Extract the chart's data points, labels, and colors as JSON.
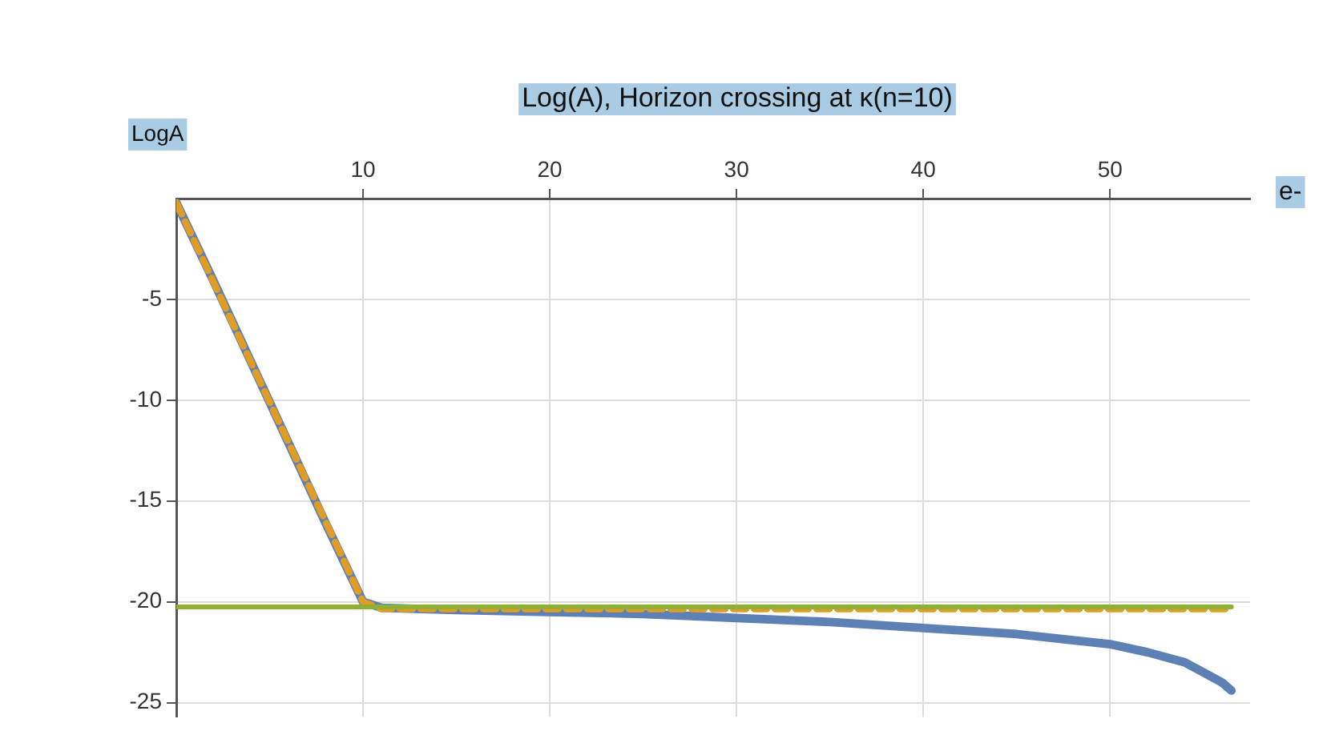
{
  "chart_data": {
    "type": "line",
    "title": "Log(A), Horizon crossing at κ(n=10)",
    "xlabel": "e-",
    "ylabel": "LogA",
    "xlim": [
      0,
      57.5
    ],
    "ylim": [
      -25.7,
      0
    ],
    "xticks": [
      10,
      20,
      30,
      40,
      50
    ],
    "yticks": [
      -25,
      -20,
      -15,
      -10,
      -5
    ],
    "grid": true,
    "series": [
      {
        "color": "#5e81b5",
        "x": [
          0,
          2,
          4,
          6,
          8,
          10,
          11,
          15,
          20,
          25,
          30,
          35,
          40,
          45,
          50,
          52,
          54,
          55,
          56,
          56.5
        ],
        "values": [
          -0.2,
          -4.1,
          -8.1,
          -12.1,
          -16.1,
          -20.0,
          -20.3,
          -20.4,
          -20.5,
          -20.6,
          -20.8,
          -21.0,
          -21.3,
          -21.6,
          -22.1,
          -22.5,
          -23.0,
          -23.5,
          -24.0,
          -24.4
        ]
      },
      {
        "color": "#e19c24",
        "line_style": "dashed",
        "x": [
          0,
          10,
          11,
          56.5
        ],
        "values": [
          -0.2,
          -20.0,
          -20.35,
          -20.35
        ]
      },
      {
        "color": "#8fb032",
        "x": [
          0,
          56.5
        ],
        "values": [
          -20.25,
          -20.25
        ]
      }
    ]
  }
}
